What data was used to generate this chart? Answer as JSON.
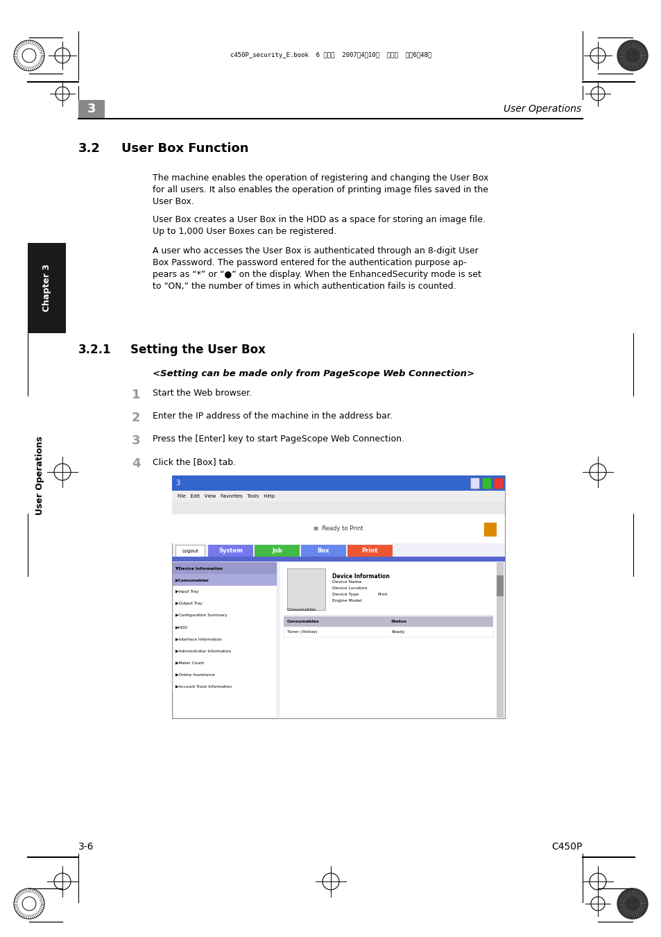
{
  "bg_color": "#ffffff",
  "chapter_num": "3",
  "header_text": "User Operations",
  "section_32_title": "3.2",
  "section_32_subtitle": "User Box Function",
  "section_321_title": "3.2.1",
  "section_321_subtitle": "Setting the User Box",
  "para1_line1": "The machine enables the operation of registering and changing the User Box",
  "para1_line2": "for all users. It also enables the operation of printing image files saved in the",
  "para1_line3": "User Box.",
  "para2_line1": "User Box creates a User Box in the HDD as a space for storing an image file.",
  "para2_line2": "Up to 1,000 User Boxes can be registered.",
  "para3_line1": "A user who accesses the User Box is authenticated through an 8-digit User",
  "para3_line2": "Box Password. The password entered for the authentication purpose ap-",
  "para3_line3": "pears as “*” or “●” on the display. When the EnhancedSecurity mode is set",
  "para3_line4": "to “ON,” the number of times in which authentication fails is counted.",
  "setting_note": "<Setting can be made only from PageScope Web Connection>",
  "step1": "Start the Web browser.",
  "step2": "Enter the IP address of the machine in the address bar.",
  "step3": "Press the [Enter] key to start PageScope Web Connection.",
  "step4": "Click the [Box] tab.",
  "footer_left": "3-6",
  "footer_right": "C450P",
  "header_meta": "c450P_security_E.book  6 ページ  2007年4月10日  火曜日  午後6晉48分",
  "sidebar_text": "Chapter 3",
  "sidebar2_text": "User Operations",
  "sidebar_bg": "#1a1a1a",
  "chapter_box_color": "#888888",
  "nav_selected_color": "#9999cc",
  "nav_hover_color": "#aaaadd",
  "tab_system_color": "#7777ee",
  "tab_job_color": "#44bb44",
  "tab_box_color": "#6688ee",
  "tab_print_color": "#ee5533",
  "titlebar_color": "#3366cc",
  "nav_stripe_color": "#8888cc"
}
